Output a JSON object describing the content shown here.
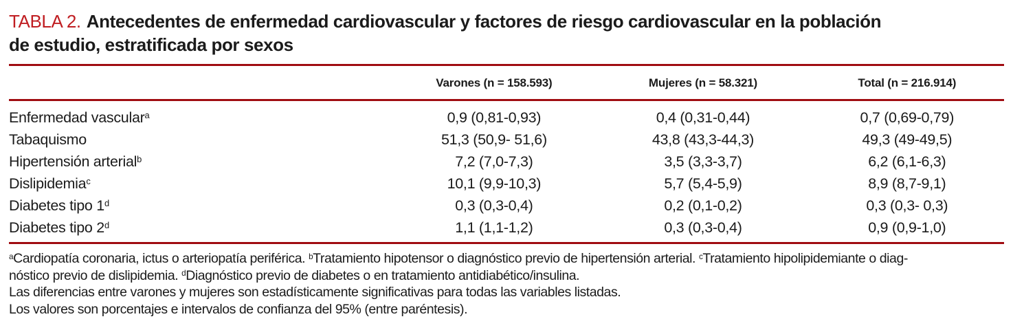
{
  "title": {
    "label": "TABLA 2.",
    "text_line1": "Antecedentes de enfermedad cardiovascular y factores de riesgo cardiovascular en la población",
    "text_line2": "de estudio, estratificada por sexos"
  },
  "table": {
    "columns": [
      "",
      "Varones (n = 158.593)",
      "Mujeres (n = 58.321)",
      "Total (n = 216.914)"
    ],
    "rows": [
      {
        "label": "Enfermedad vascular",
        "sup": "a",
        "varones": "0,9 (0,81-0,93)",
        "mujeres": "0,4 (0,31-0,44)",
        "total": "0,7 (0,69-0,79)"
      },
      {
        "label": "Tabaquismo",
        "sup": "",
        "varones": "51,3 (50,9- 51,6)",
        "mujeres": "43,8 (43,3-44,3)",
        "total": "49,3 (49-49,5)"
      },
      {
        "label": "Hipertensión arterial",
        "sup": "b",
        "varones": "7,2 (7,0-7,3)",
        "mujeres": "3,5 (3,3-3,7)",
        "total": "6,2 (6,1-6,3)"
      },
      {
        "label": "Dislipidemia",
        "sup": "c",
        "varones": "10,1 (9,9-10,3)",
        "mujeres": "5,7 (5,4-5,9)",
        "total": "8,9 (8,7-9,1)"
      },
      {
        "label": "Diabetes tipo 1",
        "sup": "d",
        "varones": "0,3 (0,3-0,4)",
        "mujeres": "0,2 (0,1-0,2)",
        "total": "0,3 (0,3- 0,3)"
      },
      {
        "label": "Diabetes tipo 2",
        "sup": "d",
        "varones": "1,1 (1,1-1,2)",
        "mujeres": "0,3 (0,3-0,4)",
        "total": "0,9 (0,9-1,0)"
      }
    ]
  },
  "footnotes": {
    "lines": [
      [
        {
          "sup": "a",
          "text": "Cardiopatía coronaria, ictus o arteriopatía periférica. "
        },
        {
          "sup": "b",
          "text": "Tratamiento hipotensor o diagnóstico previo de hipertensión arterial. "
        },
        {
          "sup": "c",
          "text": "Tratamiento hipolipidemiante o diag-"
        }
      ],
      [
        {
          "text": "nóstico previo de dislipidemia. "
        },
        {
          "sup": "d",
          "text": "Diagnóstico previo de diabetes o en tratamiento antidiabético/insulina."
        }
      ],
      [
        {
          "text": "Las diferencias entre varones y mujeres son estadísticamente significativas para todas las variables listadas."
        }
      ],
      [
        {
          "text": "Los valores son porcentajes e intervalos de confianza del 95% (entre paréntesis)."
        }
      ]
    ]
  },
  "colors": {
    "accent_red": "#c01e22",
    "rule_red": "#a00c11",
    "text": "#1b1b1b"
  }
}
